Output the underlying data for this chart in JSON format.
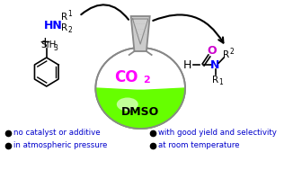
{
  "bg_color": "#ffffff",
  "bullet_color": "#000000",
  "text_color": "#0000cc",
  "bullet_texts": [
    "no catalyst or additive",
    "in atmospheric pressure",
    "with good yield and selectivity",
    "at room temperature"
  ],
  "co2_color": "#ff00ff",
  "dmso_color": "#000000",
  "flask_fill_color": "#66ff00",
  "arrow_color": "#000000",
  "amine_color": "#0000ff",
  "formamide_o_color": "#cc00cc",
  "formamide_n_color": "#0000ff",
  "flask_edge_color": "#888888",
  "neck_fill_color": "#cccccc",
  "neck_dot_color": "#aaaaaa"
}
